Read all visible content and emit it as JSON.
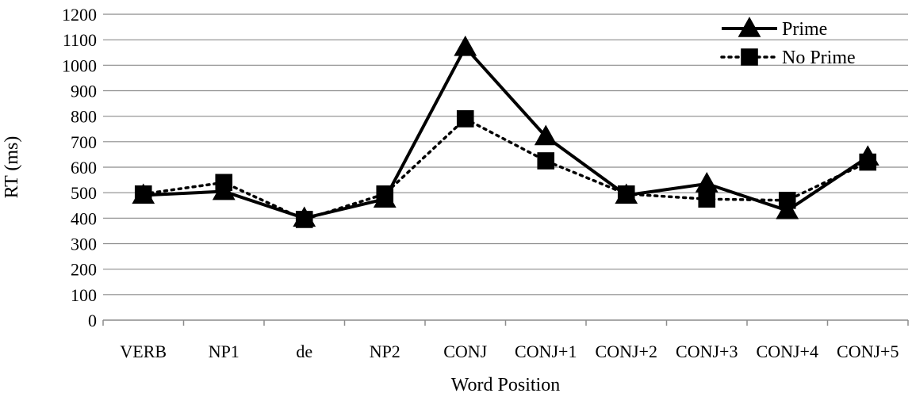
{
  "chart_data": {
    "type": "line",
    "title": "",
    "xlabel": "Word Position",
    "ylabel": "RT (ms)",
    "ylim": [
      0,
      1200
    ],
    "yticks": [
      0,
      100,
      200,
      300,
      400,
      500,
      600,
      700,
      800,
      900,
      1000,
      1100,
      1200
    ],
    "categories": [
      "VERB",
      "NP1",
      "de",
      "NP2",
      "CONJ",
      "CONJ+1",
      "CONJ+2",
      "CONJ+3",
      "CONJ+4",
      "CONJ+5"
    ],
    "grid": true,
    "legend_position": "top-right",
    "series": [
      {
        "name": "Prime",
        "marker": "triangle",
        "line_style": "solid",
        "color": "#000000",
        "values": [
          490,
          505,
          400,
          475,
          1070,
          720,
          490,
          535,
          430,
          640
        ]
      },
      {
        "name": "No Prime",
        "marker": "square",
        "line_style": "dotted",
        "color": "#000000",
        "values": [
          495,
          540,
          395,
          495,
          790,
          625,
          495,
          475,
          470,
          620
        ]
      }
    ]
  }
}
